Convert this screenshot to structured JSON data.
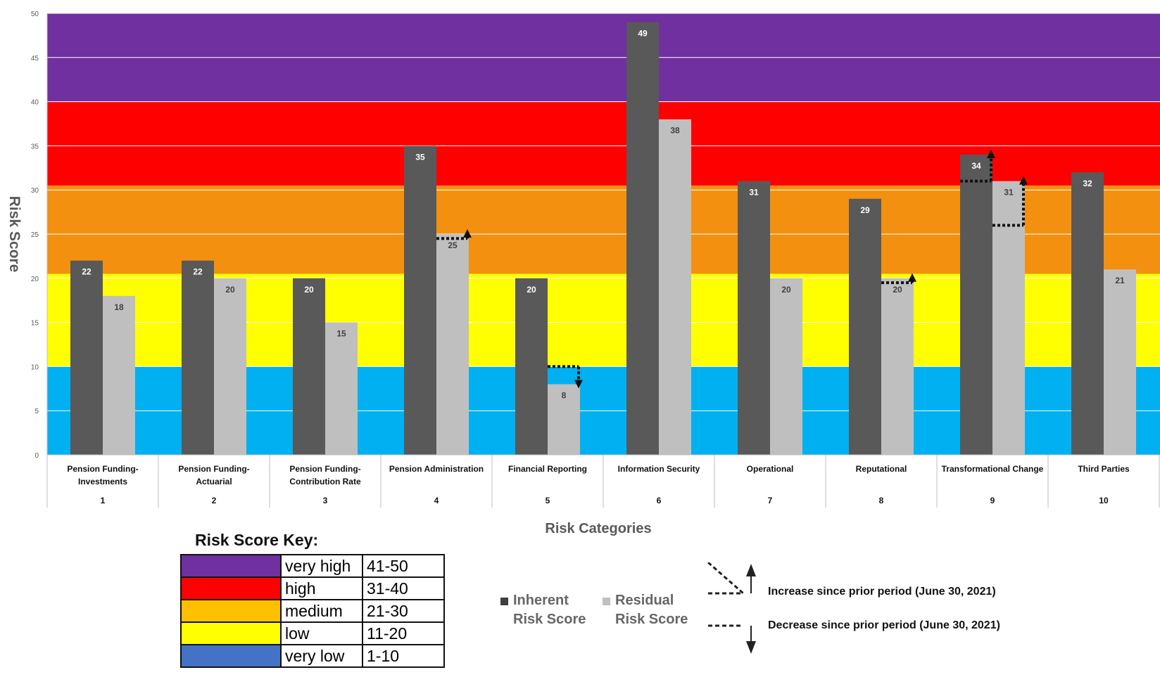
{
  "chart_data": {
    "type": "bar",
    "ylabel": "Risk Score",
    "xlabel": "Risk Categories",
    "ylim": [
      0,
      50
    ],
    "yticks": [
      0,
      5,
      10,
      15,
      20,
      25,
      30,
      35,
      40,
      45,
      50
    ],
    "categories": [
      {
        "name_lines": [
          "Pension Funding-",
          "Investments"
        ],
        "number": "1"
      },
      {
        "name_lines": [
          "Pension Funding-",
          "Actuarial"
        ],
        "number": "2"
      },
      {
        "name_lines": [
          "Pension Funding-",
          "Contribution Rate"
        ],
        "number": "3"
      },
      {
        "name_lines": [
          "Pension Administration"
        ],
        "number": "4"
      },
      {
        "name_lines": [
          "Financial Reporting"
        ],
        "number": "5"
      },
      {
        "name_lines": [
          "Information Security"
        ],
        "number": "6"
      },
      {
        "name_lines": [
          "Operational"
        ],
        "number": "7"
      },
      {
        "name_lines": [
          "Reputational"
        ],
        "number": "8"
      },
      {
        "name_lines": [
          "Transformational Change"
        ],
        "number": "9"
      },
      {
        "name_lines": [
          "Third Parties"
        ],
        "number": "10"
      }
    ],
    "series": [
      {
        "name": "Inherent Risk Score",
        "color": "#595959",
        "label_color": "#ffffff",
        "values": [
          22,
          22,
          20,
          35,
          20,
          49,
          31,
          29,
          34,
          32
        ]
      },
      {
        "name": "Residual Risk Score",
        "color": "#bfbfbf",
        "label_color": "#404040",
        "values": [
          18,
          20,
          15,
          25,
          8,
          38,
          20,
          20,
          31,
          21
        ]
      }
    ],
    "background_bands": [
      {
        "from": 0,
        "to": 10,
        "color": "#00b0f0"
      },
      {
        "from": 10,
        "to": 20.5,
        "color": "#ffff00"
      },
      {
        "from": 20.5,
        "to": 30.5,
        "color": "#f39010"
      },
      {
        "from": 30.5,
        "to": 40,
        "color": "#ff0000"
      },
      {
        "from": 40,
        "to": 50,
        "color": "#7030a0"
      }
    ],
    "trend_markers": [
      {
        "category": 4,
        "series": "Residual Risk Score",
        "direction": "increase",
        "prior": 24.5,
        "current": 25
      },
      {
        "category": 5,
        "series": "Residual Risk Score",
        "direction": "decrease",
        "prior": 10,
        "current": 8
      },
      {
        "category": 8,
        "series": "Residual Risk Score",
        "direction": "increase",
        "prior": 19.5,
        "current": 20
      },
      {
        "category": 9,
        "series": "Inherent Risk Score",
        "direction": "increase",
        "prior": 31,
        "current": 34
      },
      {
        "category": 9,
        "series": "Residual Risk Score",
        "direction": "increase",
        "prior": 26,
        "current": 31
      }
    ]
  },
  "risk_key": {
    "title": "Risk Score Key:",
    "rows": [
      {
        "label": "very high",
        "range": "41-50",
        "color": "#7030a0"
      },
      {
        "label": "high",
        "range": "31-40",
        "color": "#ff0000"
      },
      {
        "label": "medium",
        "range": "21-30",
        "color": "#ffc000"
      },
      {
        "label": "low",
        "range": "11-20",
        "color": "#ffff00"
      },
      {
        "label": "very low",
        "range": "1-10",
        "color": "#4472c4"
      }
    ]
  },
  "legend": {
    "inherent": {
      "line1": "Inherent",
      "line2": "Risk Score",
      "color": "#404040"
    },
    "residual": {
      "line1": "Residual",
      "line2": "Risk Score",
      "color": "#bfbfbf"
    },
    "increase_text": "Increase since prior period (June 30, 2021)",
    "decrease_text": "Decrease since prior period (June 30, 2021)"
  }
}
